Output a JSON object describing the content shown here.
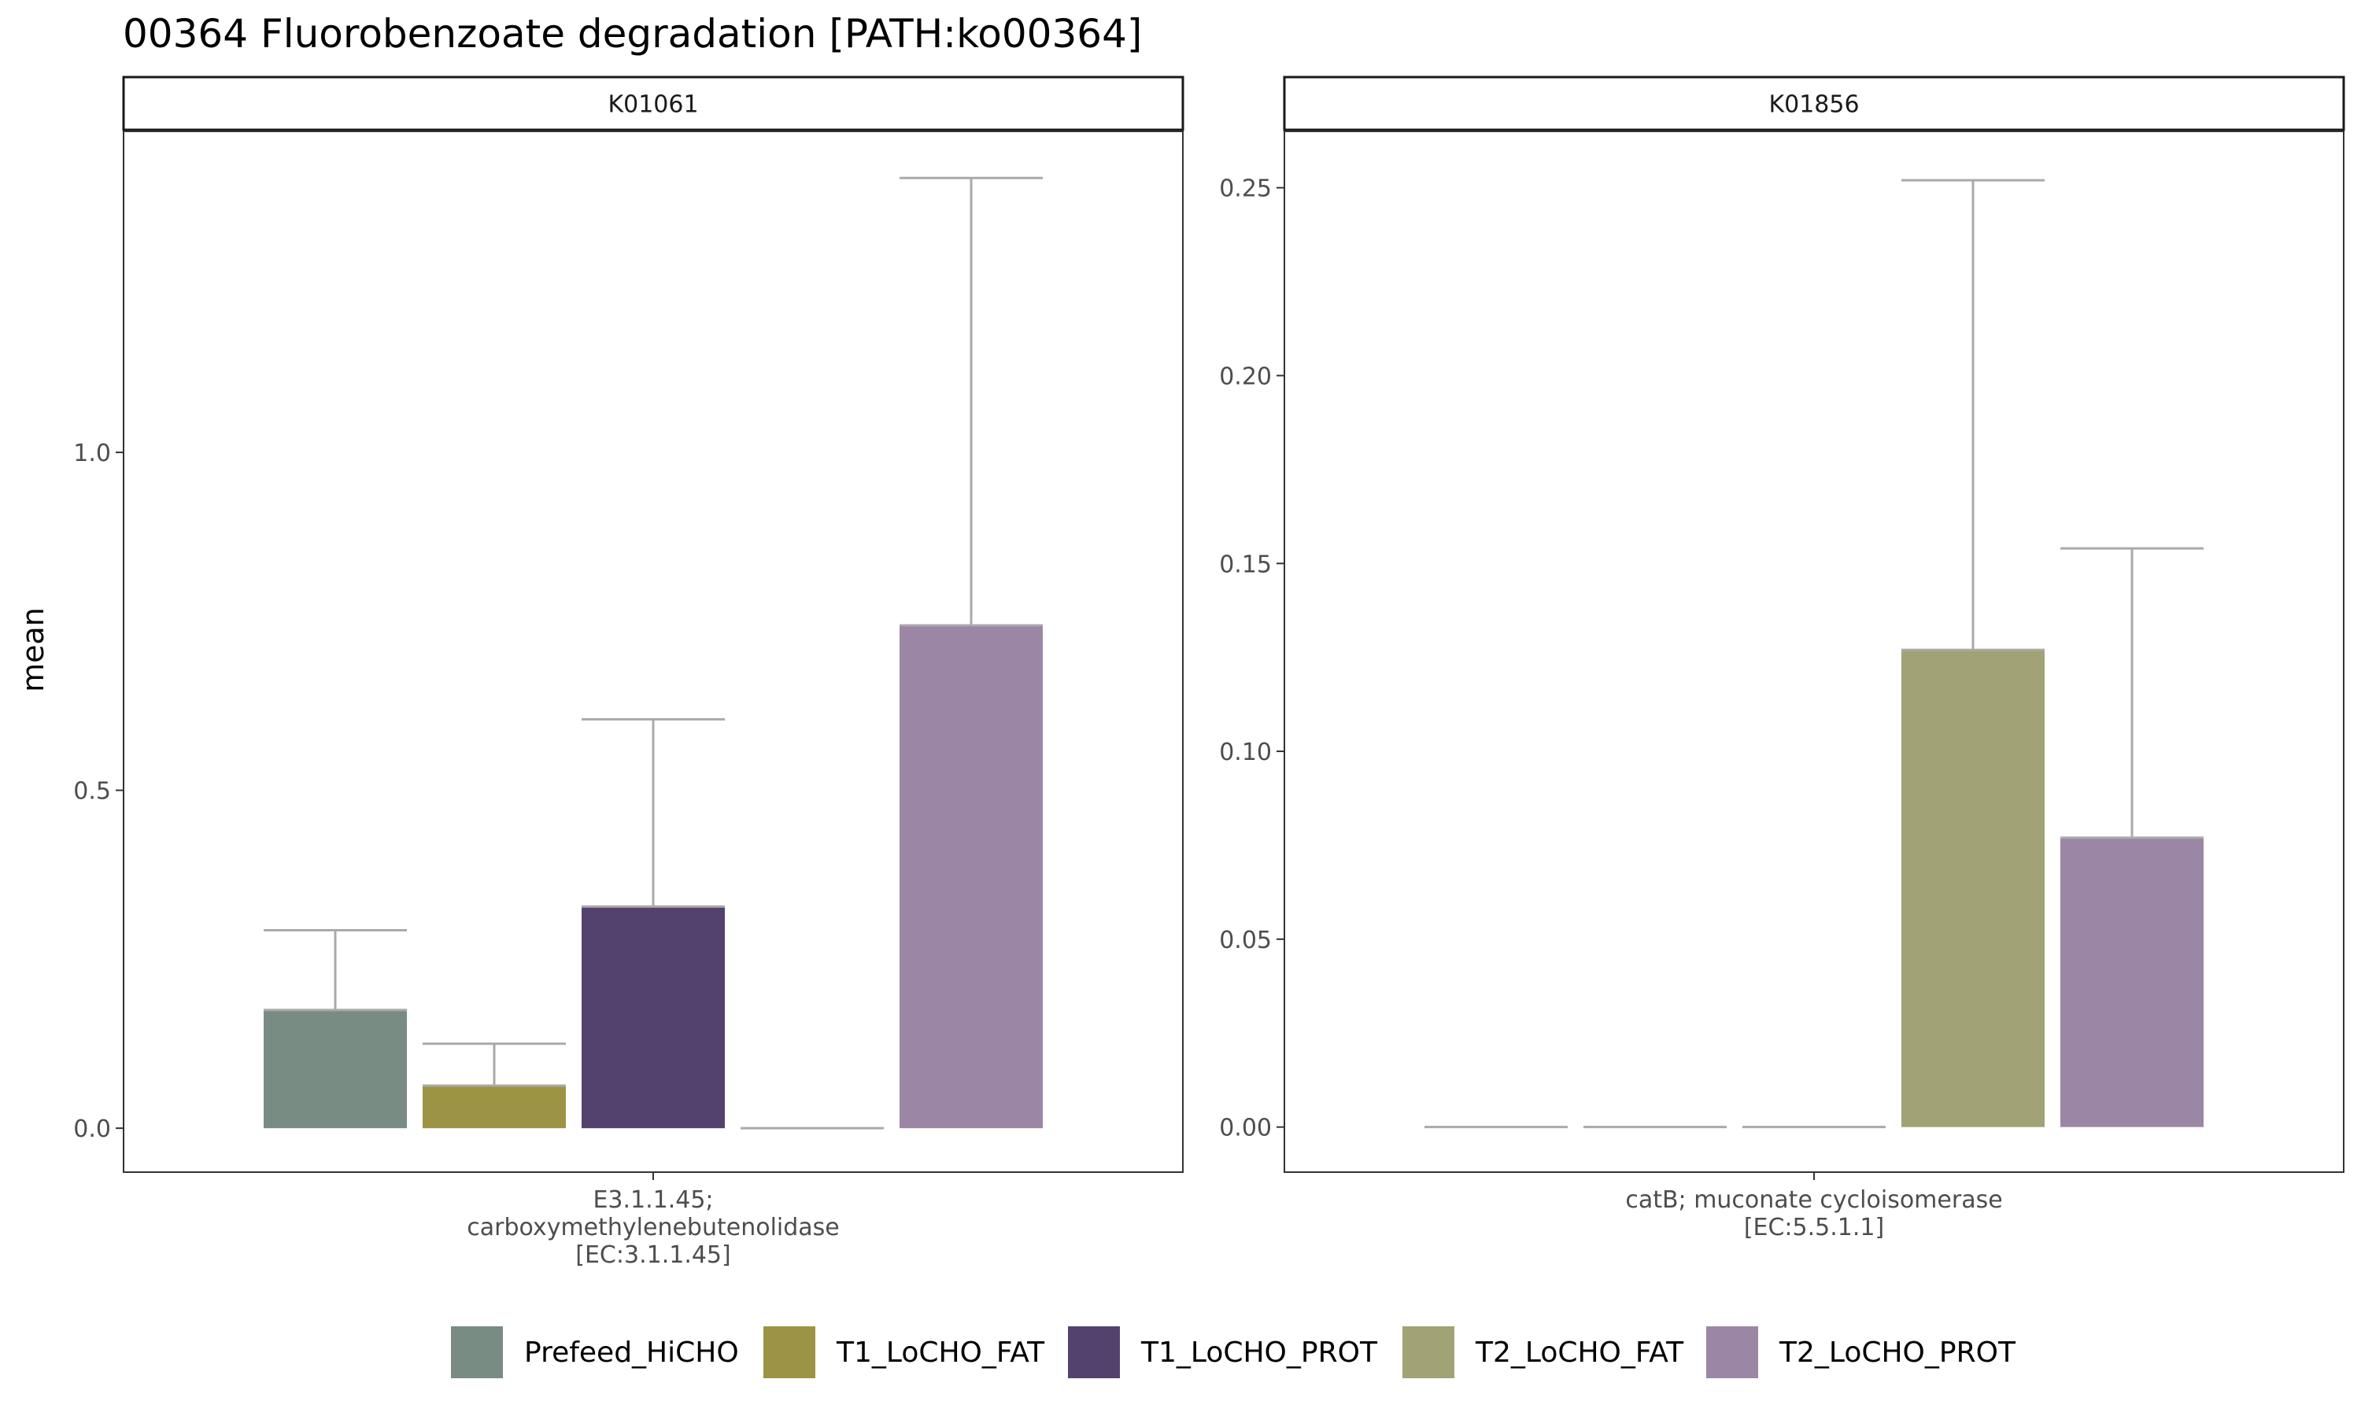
{
  "title": "00364 Fluorobenzoate degradation [PATH:ko00364]",
  "chart_data": {
    "type": "bar",
    "ylabel": "mean",
    "groups": [
      "Prefeed_HiCHO",
      "T1_LoCHO_FAT",
      "T1_LoCHO_PROT",
      "T2_LoCHO_FAT",
      "T2_LoCHO_PROT"
    ],
    "colors": {
      "Prefeed_HiCHO": "#798c84",
      "T1_LoCHO_FAT": "#9c9444",
      "T1_LoCHO_PROT": "#53426d",
      "T2_LoCHO_FAT": "#a1a374",
      "T2_LoCHO_PROT": "#9b87a5",
      "error_bar": "#aaaaaa"
    },
    "legend_position": "bottom",
    "panels": [
      {
        "strip": "K01061",
        "category_lines": [
          "E3.1.1.45;",
          "carboxymethylenebutenolidase",
          "[EC:3.1.1.45]"
        ],
        "ylim": [
          -0.065,
          1.475
        ],
        "yticks": [
          0.0,
          0.5,
          1.0
        ],
        "ytick_labels": [
          "0.0",
          "0.5",
          "1.0"
        ],
        "values": [
          0.175,
          0.063,
          0.328,
          0.0,
          0.744
        ],
        "error_upper": [
          0.293,
          0.125,
          0.605,
          0.0,
          1.406
        ]
      },
      {
        "strip": "K01856",
        "category_lines": [
          "catB; muconate cycloisomerase",
          "[EC:5.5.1.1]"
        ],
        "ylim": [
          -0.012,
          0.265
        ],
        "yticks": [
          0.0,
          0.05,
          0.1,
          0.15,
          0.2,
          0.25
        ],
        "ytick_labels": [
          "0.00",
          "0.05",
          "0.10",
          "0.15",
          "0.20",
          "0.25"
        ],
        "values": [
          0.0,
          0.0,
          0.0,
          0.127,
          0.077
        ],
        "error_upper": [
          0.0,
          0.0,
          0.0,
          0.252,
          0.154
        ]
      }
    ]
  }
}
